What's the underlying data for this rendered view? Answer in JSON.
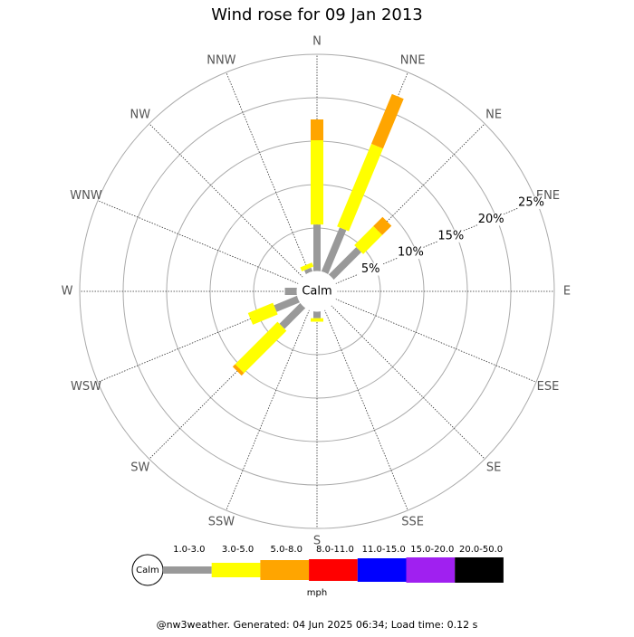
{
  "chart_data": {
    "type": "windrose",
    "title": "Wind rose for 09 Jan 2013",
    "calm_label": "Calm",
    "categories": [
      "N",
      "NNE",
      "NE",
      "ENE",
      "E",
      "ESE",
      "SE",
      "SSE",
      "S",
      "SSW",
      "SW",
      "WSW",
      "W",
      "WNW",
      "NW",
      "NNW"
    ],
    "series": [
      {
        "name": "1.0-3.0",
        "color": "#999999",
        "values": [
          5.4,
          5.5,
          4.5,
          0,
          0,
          0,
          0,
          0,
          0.8,
          0,
          3.4,
          2.9,
          1.4,
          0,
          0,
          0.5
        ]
      },
      {
        "name": "3.0-5.0",
        "color": "#ffff00",
        "values": [
          9.7,
          10.3,
          3.1,
          0,
          0,
          0,
          0,
          0,
          0.4,
          0,
          6.9,
          3.1,
          0,
          0,
          0,
          0.5
        ]
      },
      {
        "name": "5.0-8.0",
        "color": "#ffa500",
        "values": [
          2.4,
          6.2,
          1.5,
          0,
          0,
          0,
          0,
          0,
          0,
          0,
          0.4,
          0,
          0,
          0,
          0,
          0
        ]
      },
      {
        "name": "8.0-11.0",
        "color": "#ff0000",
        "values": [
          0,
          0,
          0,
          0,
          0,
          0,
          0,
          0,
          0,
          0,
          0,
          0,
          0,
          0,
          0,
          0
        ]
      },
      {
        "name": "11.0-15.0",
        "color": "#0000ff",
        "values": [
          0,
          0,
          0,
          0,
          0,
          0,
          0,
          0,
          0,
          0,
          0,
          0,
          0,
          0,
          0,
          0
        ]
      },
      {
        "name": "15.0-20.0",
        "color": "#a020f0",
        "values": [
          0,
          0,
          0,
          0,
          0,
          0,
          0,
          0,
          0,
          0,
          0,
          0,
          0,
          0,
          0,
          0
        ]
      },
      {
        "name": "20.0-50.0",
        "color": "#000000",
        "values": [
          0,
          0,
          0,
          0,
          0,
          0,
          0,
          0,
          0,
          0,
          0,
          0,
          0,
          0,
          0,
          0
        ]
      }
    ],
    "rlim": [
      0,
      25
    ],
    "rticks": [
      {
        "value": 5,
        "label": "5%"
      },
      {
        "value": 10,
        "label": "10%"
      },
      {
        "value": 15,
        "label": "15%"
      },
      {
        "value": 20,
        "label": "20%"
      },
      {
        "value": 25,
        "label": "25%"
      }
    ],
    "unit": "mph",
    "footer": "@nw3weather. Generated: 04 Jun 2025 06:34; Load time: 0.12 s"
  }
}
